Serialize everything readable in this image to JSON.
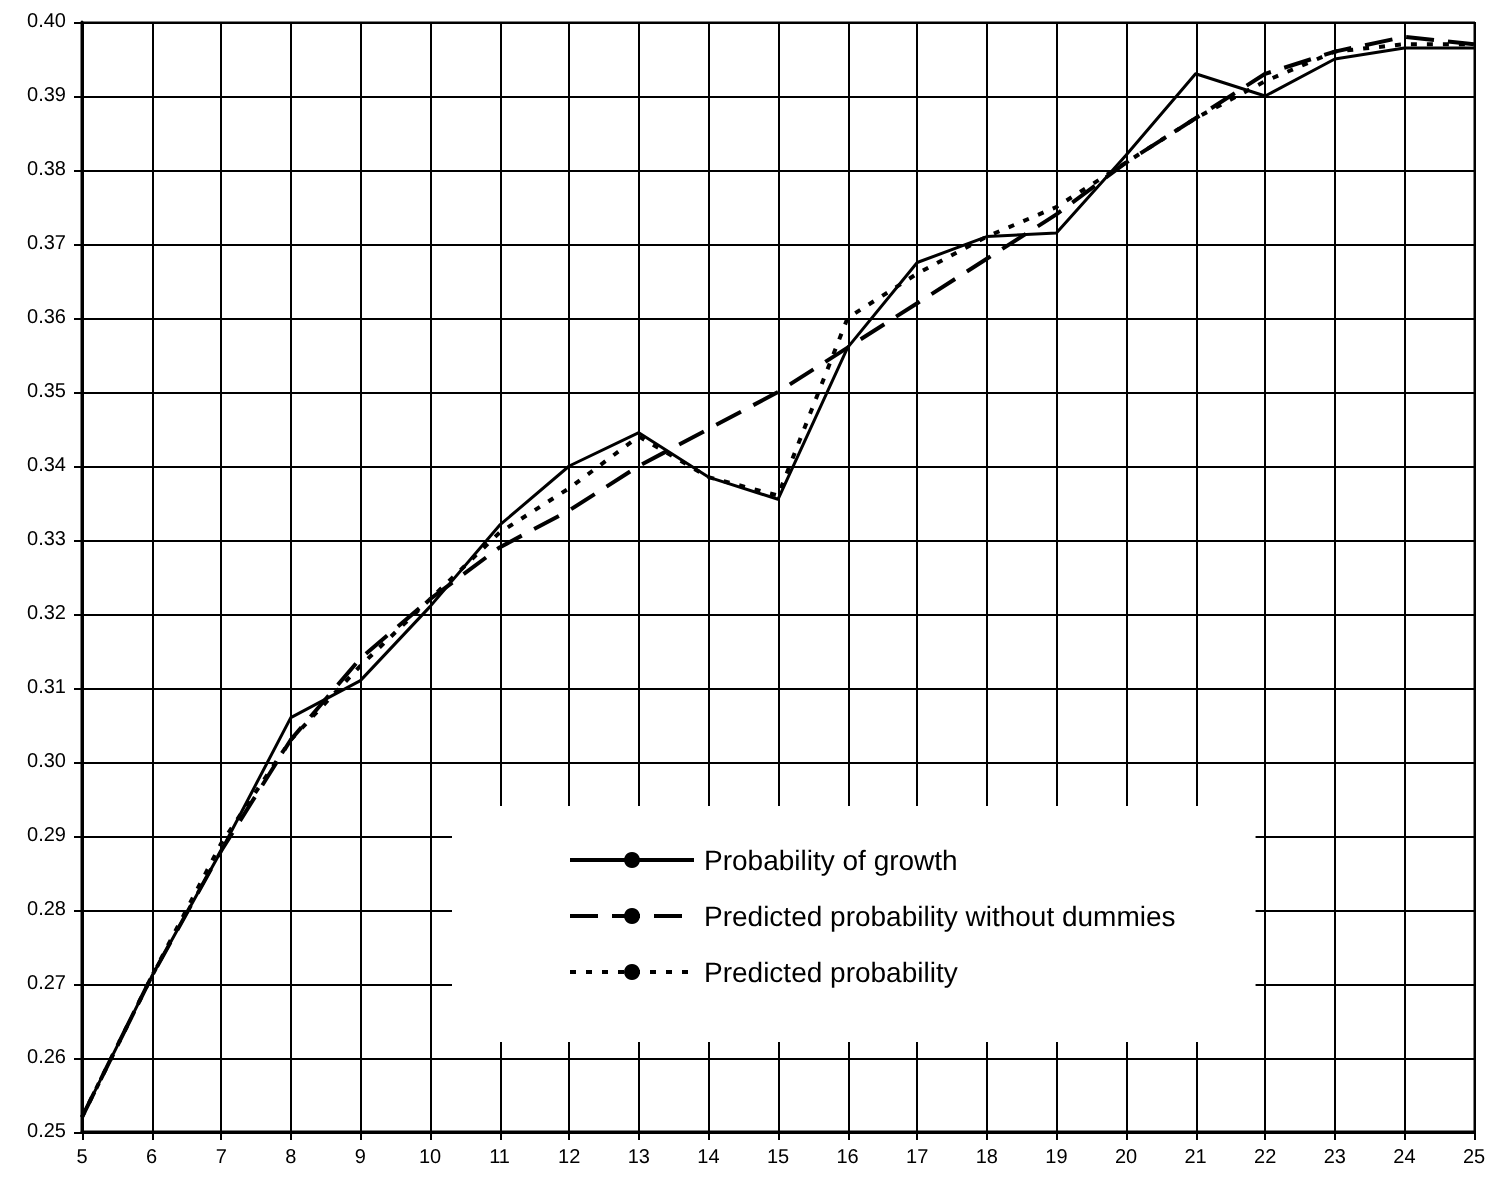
{
  "chart_data": {
    "type": "line",
    "x": [
      5,
      6,
      7,
      8,
      9,
      10,
      11,
      12,
      13,
      14,
      15,
      16,
      17,
      18,
      19,
      20,
      21,
      22,
      23,
      24,
      25
    ],
    "series": [
      {
        "name": "Probability of growth",
        "color": "#000000",
        "line_style": "solid",
        "values": [
          0.252,
          0.271,
          0.288,
          0.306,
          0.311,
          0.321,
          0.332,
          0.34,
          0.3445,
          0.3385,
          0.3355,
          0.356,
          0.3675,
          0.371,
          0.3715,
          0.382,
          0.393,
          0.39,
          0.395,
          0.3965,
          0.3965
        ]
      },
      {
        "name": "Predicted probability without dummies",
        "color": "#000000",
        "line_style": "dashed",
        "values": [
          0.252,
          0.271,
          0.288,
          0.303,
          0.314,
          0.322,
          0.329,
          0.334,
          0.34,
          0.345,
          0.35,
          0.356,
          0.362,
          0.368,
          0.374,
          0.381,
          0.387,
          0.393,
          0.396,
          0.398,
          0.397
        ]
      },
      {
        "name": "Predicted probability",
        "color": "#000000",
        "line_style": "dotted",
        "values": [
          0.252,
          0.271,
          0.289,
          0.303,
          0.313,
          0.322,
          0.331,
          0.337,
          0.344,
          0.3385,
          0.336,
          0.36,
          0.366,
          0.371,
          0.375,
          0.381,
          0.387,
          0.392,
          0.396,
          0.397,
          0.397
        ]
      }
    ],
    "xlim": [
      5,
      25
    ],
    "xticks": [
      5,
      6,
      7,
      8,
      9,
      10,
      11,
      12,
      13,
      14,
      15,
      16,
      17,
      18,
      19,
      20,
      21,
      22,
      23,
      24,
      25
    ],
    "ylim": [
      0.25,
      0.4
    ],
    "yticks": [
      0.25,
      0.26,
      0.27,
      0.28,
      0.29,
      {
        "value": 0.3,
        "label": "0.30"
      },
      0.31,
      0.32,
      0.33,
      0.34,
      0.35,
      0.36,
      0.37,
      0.38,
      0.39,
      {
        "value": 0.4,
        "label": "0.40"
      }
    ],
    "grid": true,
    "legend": "bottom right",
    "marker": "none"
  }
}
